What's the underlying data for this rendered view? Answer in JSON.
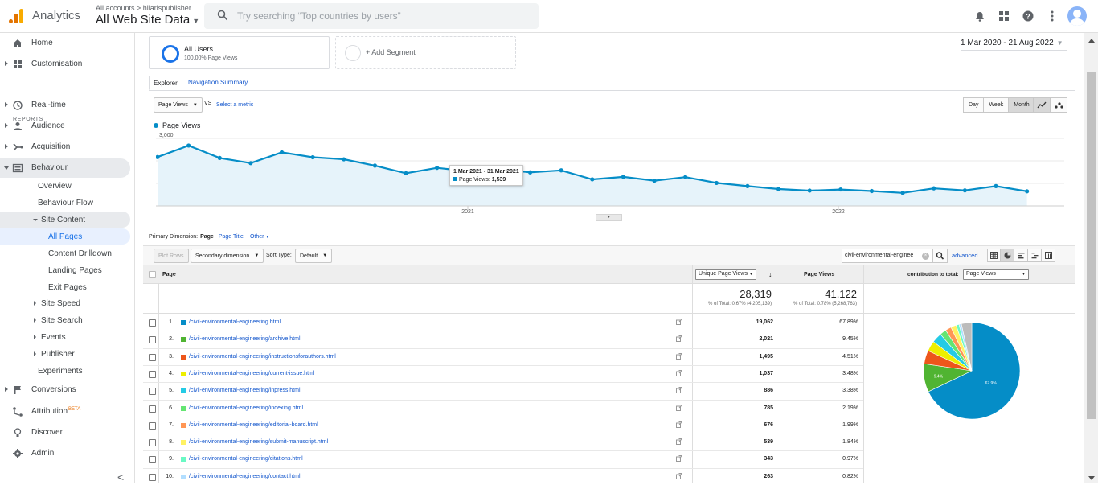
{
  "app": {
    "name": "Analytics",
    "account_crumb": "All accounts > hilarispublisher",
    "view": "All Web Site Data",
    "search_placeholder": "Try searching “Top countries by users”"
  },
  "sidebar": {
    "home": "Home",
    "customisation": "Customisation",
    "reports_header": "REPORTS",
    "realtime": "Real-time",
    "audience": "Audience",
    "acquisition": "Acquisition",
    "behaviour": "Behaviour",
    "overview": "Overview",
    "behaviour_flow": "Behaviour Flow",
    "site_content": "Site Content",
    "all_pages": "All Pages",
    "content_drilldown": "Content Drilldown",
    "landing_pages": "Landing Pages",
    "exit_pages": "Exit Pages",
    "site_speed": "Site Speed",
    "site_search": "Site Search",
    "events": "Events",
    "publisher": "Publisher",
    "experiments": "Experiments",
    "conversions": "Conversions",
    "attribution": "Attribution",
    "attribution_badge": "BETA",
    "discover": "Discover",
    "admin": "Admin",
    "collapse": "<"
  },
  "segments": {
    "all_users": "All Users",
    "all_users_sub": "100.00% Page Views",
    "add_segment": "+ Add Segment"
  },
  "date_range": "1 Mar 2020 - 21 Aug 2022",
  "tabs": [
    "Explorer",
    "Navigation Summary"
  ],
  "chart_controls": {
    "metric": "Page Views",
    "vs": "VS",
    "select_metric": "Select a metric",
    "day": "Day",
    "week": "Week",
    "month": "Month"
  },
  "chart_data": {
    "type": "line",
    "series": [
      {
        "name": "Page Views",
        "color": "#058dc7",
        "values": [
          2170,
          2680,
          2130,
          1900,
          2380,
          2160,
          2070,
          1790,
          1450,
          1690,
          1539,
          1640,
          1490,
          1580,
          1180,
          1290,
          1120,
          1280,
          1020,
          880,
          750,
          680,
          730,
          660,
          580,
          780,
          690,
          880,
          650
        ]
      }
    ],
    "x_labels": [
      "2021",
      "2022"
    ],
    "y_ticks": [
      "1,000",
      "2,000",
      "3,000"
    ],
    "ylim": [
      0,
      3000
    ],
    "tooltip": {
      "title": "1 Mar 2021 - 31 Mar 2021",
      "label": "Page Views:",
      "value": "1,539"
    }
  },
  "table_controls": {
    "primary_dimension_label": "Primary Dimension:",
    "primary_value": "Page",
    "page_title": "Page Title",
    "other": "Other",
    "plot_rows": "Plot Rows",
    "secondary_dimension": "Secondary dimension",
    "sort_type_label": "Sort Type:",
    "sort_type": "Default",
    "search_value": "civil-environmental-enginee",
    "advanced": "advanced"
  },
  "table": {
    "col_page": "Page",
    "col_unique": "Unique Page Views",
    "col_views": "Page Views",
    "contribution_label": "contribution to total:",
    "contribution_value": "Page Views",
    "totals": {
      "unique": "28,319",
      "unique_sub": "% of Total: 0.67% (4,205,139)",
      "views": "41,122",
      "views_sub": "% of Total: 0.78% (5,268,763)"
    },
    "rows": [
      {
        "n": "1.",
        "page": "/civil-environmental-engineering.html",
        "unique": "19,062",
        "pct": "67.89%",
        "color": "#058dc7"
      },
      {
        "n": "2.",
        "page": "/civil-environmental-engineering/archive.html",
        "unique": "2,021",
        "pct": "9.45%",
        "color": "#50b432"
      },
      {
        "n": "3.",
        "page": "/civil-environmental-engineering/instructionsforauthors.html",
        "unique": "1,495",
        "pct": "4.51%",
        "color": "#ed561b"
      },
      {
        "n": "4.",
        "page": "/civil-environmental-engineering/current-issue.html",
        "unique": "1,037",
        "pct": "3.48%",
        "color": "#edef00"
      },
      {
        "n": "5.",
        "page": "/civil-environmental-engineering/inpress.html",
        "unique": "886",
        "pct": "3.38%",
        "color": "#24cbe5"
      },
      {
        "n": "6.",
        "page": "/civil-environmental-engineering/indexing.html",
        "unique": "785",
        "pct": "2.19%",
        "color": "#64e572"
      },
      {
        "n": "7.",
        "page": "/civil-environmental-engineering/editorial-board.html",
        "unique": "676",
        "pct": "1.99%",
        "color": "#ff9655"
      },
      {
        "n": "8.",
        "page": "/civil-environmental-engineering/submit-manuscript.html",
        "unique": "539",
        "pct": "1.84%",
        "color": "#fff263"
      },
      {
        "n": "9.",
        "page": "/civil-environmental-engineering/citations.html",
        "unique": "343",
        "pct": "0.97%",
        "color": "#6af9c4"
      },
      {
        "n": "10.",
        "page": "/civil-environmental-engineering/contact.html",
        "unique": "263",
        "pct": "0.82%",
        "color": "#b2deff"
      }
    ],
    "pie_labels": [
      "67.9%",
      "9.4%"
    ]
  }
}
